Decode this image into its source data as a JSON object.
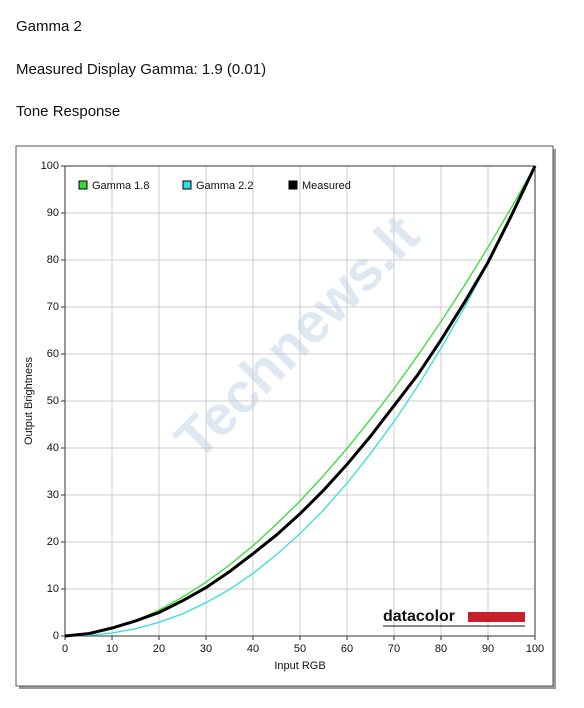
{
  "headings": [
    "Gamma 2",
    "Measured Display Gamma: 1.9 (0.01)",
    "Tone Response"
  ],
  "chart_data": {
    "type": "line",
    "xlabel": "Input RGB",
    "ylabel": "Output Brightness",
    "x": [
      0,
      5,
      10,
      15,
      20,
      25,
      30,
      35,
      40,
      45,
      50,
      55,
      60,
      65,
      70,
      75,
      80,
      85,
      90,
      95,
      100
    ],
    "series": [
      {
        "name": "Gamma 1.8",
        "color": "#33dd33",
        "values": [
          0,
          0.45,
          1.58,
          3.29,
          5.52,
          8.25,
          11.45,
          15.1,
          19.2,
          23.8,
          28.7,
          34.1,
          39.9,
          46.1,
          52.6,
          59.6,
          66.9,
          74.6,
          82.7,
          91.2,
          100
        ]
      },
      {
        "name": "Gamma 2.2",
        "color": "#33dddd",
        "values": [
          0,
          0.14,
          0.63,
          1.54,
          2.9,
          4.7,
          7.1,
          9.9,
          13.3,
          17.3,
          21.8,
          26.8,
          32.5,
          38.8,
          45.6,
          53.1,
          61.2,
          69.9,
          79.3,
          89.3,
          100
        ]
      },
      {
        "name": "Measured",
        "color": "#000000",
        "values": [
          0,
          0.5,
          1.7,
          3.2,
          5,
          7.5,
          10.3,
          13.7,
          17.5,
          21.5,
          26,
          31,
          36.5,
          42.5,
          49,
          55.5,
          63,
          71,
          79.5,
          89.5,
          100
        ]
      }
    ],
    "xlim": [
      0,
      100
    ],
    "ylim": [
      0,
      100
    ],
    "xticks": [
      0,
      10,
      20,
      30,
      40,
      50,
      60,
      70,
      80,
      90,
      100
    ],
    "yticks": [
      0,
      10,
      20,
      30,
      40,
      50,
      60,
      70,
      80,
      90,
      100
    ],
    "grid": true,
    "legend": "upper left",
    "logo": "datacolor",
    "watermark": "Technews.lt"
  }
}
